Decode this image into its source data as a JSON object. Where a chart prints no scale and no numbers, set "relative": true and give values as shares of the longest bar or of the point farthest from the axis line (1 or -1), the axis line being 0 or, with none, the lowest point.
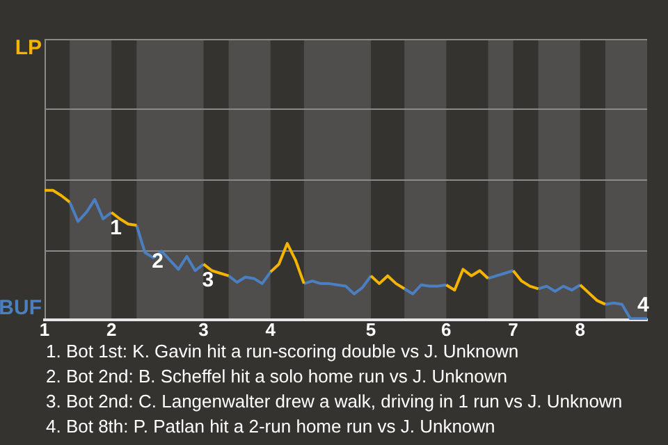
{
  "chart_data": {
    "type": "line",
    "relative": true,
    "categories": [
      "1",
      null,
      null,
      null,
      null,
      null,
      null,
      null,
      "2",
      null,
      null,
      null,
      null,
      null,
      null,
      null,
      null,
      null,
      null,
      "3",
      null,
      null,
      null,
      null,
      null,
      null,
      null,
      "4",
      null,
      null,
      null,
      null,
      null,
      null,
      null,
      null,
      null,
      null,
      null,
      "5",
      null,
      null,
      null,
      null,
      null,
      null,
      null,
      null,
      "6",
      null,
      null,
      null,
      null,
      null,
      null,
      null,
      "7",
      null,
      null,
      null,
      null,
      null,
      null,
      null,
      "8",
      null,
      null,
      null,
      null,
      null,
      null,
      null,
      null
    ],
    "ref_lines": [
      {
        "axis": "y",
        "value": 0.54,
        "color": "#8a8a8a"
      },
      {
        "axis": "y",
        "value": 1.09,
        "color": "#8a8a8a"
      },
      {
        "axis": "y",
        "value": 1.63,
        "color": "#8a8a8a"
      },
      {
        "axis": "y",
        "value": 2.17,
        "color": "#8a8a8a"
      }
    ],
    "marker": "none",
    "line_style": "solid",
    "series": [
      {
        "name": "LP",
        "color": "#f5b400",
        "values": [
          1,
          1,
          0.96,
          0.91,
          null,
          null,
          null,
          null,
          0.83,
          0.78,
          0.74,
          0.73,
          null,
          null,
          null,
          null,
          null,
          null,
          null,
          0.43,
          0.38,
          0.36,
          0.34,
          null,
          null,
          null,
          null,
          0.37,
          0.43,
          0.59,
          0.46,
          0.28,
          null,
          null,
          null,
          null,
          null,
          null,
          null,
          0.34,
          0.28,
          0.34,
          0.28,
          0.24,
          null,
          null,
          null,
          null,
          0.27,
          0.23,
          0.39,
          0.34,
          0.38,
          0.32,
          null,
          null,
          0.38,
          0.3,
          0.26,
          0.24,
          null,
          null,
          null,
          null,
          0.27,
          0.21,
          0.15,
          0.12,
          null,
          null,
          null,
          null,
          null
        ]
      },
      {
        "name": "BUF",
        "color": "#4a7fc1",
        "values": [
          null,
          null,
          null,
          0.91,
          0.76,
          0.83,
          0.93,
          0.78,
          0.83,
          null,
          null,
          0.73,
          0.52,
          0.48,
          0.53,
          0.46,
          0.39,
          0.49,
          0.38,
          0.43,
          null,
          null,
          0.34,
          0.29,
          0.33,
          0.32,
          0.28,
          0.37,
          null,
          null,
          null,
          0.28,
          0.3,
          0.28,
          0.28,
          0.27,
          0.26,
          0.2,
          0.25,
          0.34,
          null,
          null,
          null,
          0.24,
          0.2,
          0.27,
          0.26,
          0.26,
          0.27,
          null,
          null,
          null,
          null,
          0.32,
          0.34,
          0.36,
          0.38,
          null,
          null,
          0.24,
          0.26,
          0.22,
          0.26,
          0.23,
          0.27,
          null,
          null,
          0.12,
          0.13,
          0.12,
          0.01,
          0.01,
          0.01
        ]
      }
    ],
    "annotations": [
      {
        "text": "1",
        "y": 0.78
      },
      {
        "text": "2",
        "y": 0.52
      },
      {
        "text": "3",
        "y": 0.38
      },
      {
        "text": "4",
        "y": 0.01
      },
      "1. Bot 1st: K. Gavin hit a run-scoring double vs J. Unknown",
      "2. Bot 2nd: B. Scheffel hit a solo home run vs J. Unknown",
      "3. Bot 2nd: C. Langenwalter drew a walk, driving in 1 run vs J. Unknown",
      "4. Bot 8th: P. Patlan hit a 2-run home run vs J. Unknown"
    ]
  }
}
